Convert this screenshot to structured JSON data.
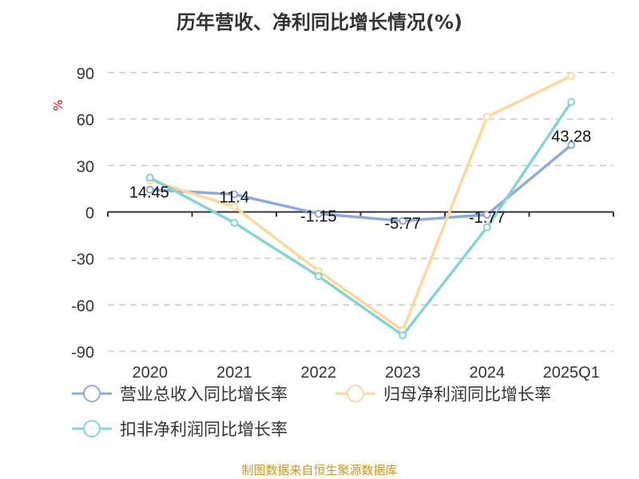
{
  "chart_data": {
    "type": "line",
    "title": "历年营收、净利同比增长情况(%)",
    "ylabel": "%",
    "categories": [
      "2020",
      "2021",
      "2022",
      "2023",
      "2024",
      "2025Q1"
    ],
    "ylim": [
      -90,
      90
    ],
    "yticks": [
      90,
      60,
      30,
      0,
      -30,
      -60,
      -90
    ],
    "grid": true,
    "legend_position": "bottom",
    "series": [
      {
        "name": "营业总收入同比增长率",
        "color": "#8eaadb",
        "values": [
          14.45,
          11.4,
          -1.15,
          -5.77,
          -1.77,
          43.28
        ],
        "labels": [
          "14.45",
          "11.4",
          "-1.15",
          "-5.77",
          "-1.77",
          "43.28"
        ]
      },
      {
        "name": "归母净利润同比增长率",
        "color": "#fdd89a",
        "values": [
          20.5,
          3.4,
          -38.1,
          -76.6,
          61.5,
          87.8
        ]
      },
      {
        "name": "扣非净利润同比增长率",
        "color": "#84d4d6",
        "values": [
          22.2,
          -7.0,
          -41.5,
          -79.7,
          -9.9,
          71.1
        ]
      }
    ]
  },
  "footer": "制图数据来自恒生聚源数据库"
}
